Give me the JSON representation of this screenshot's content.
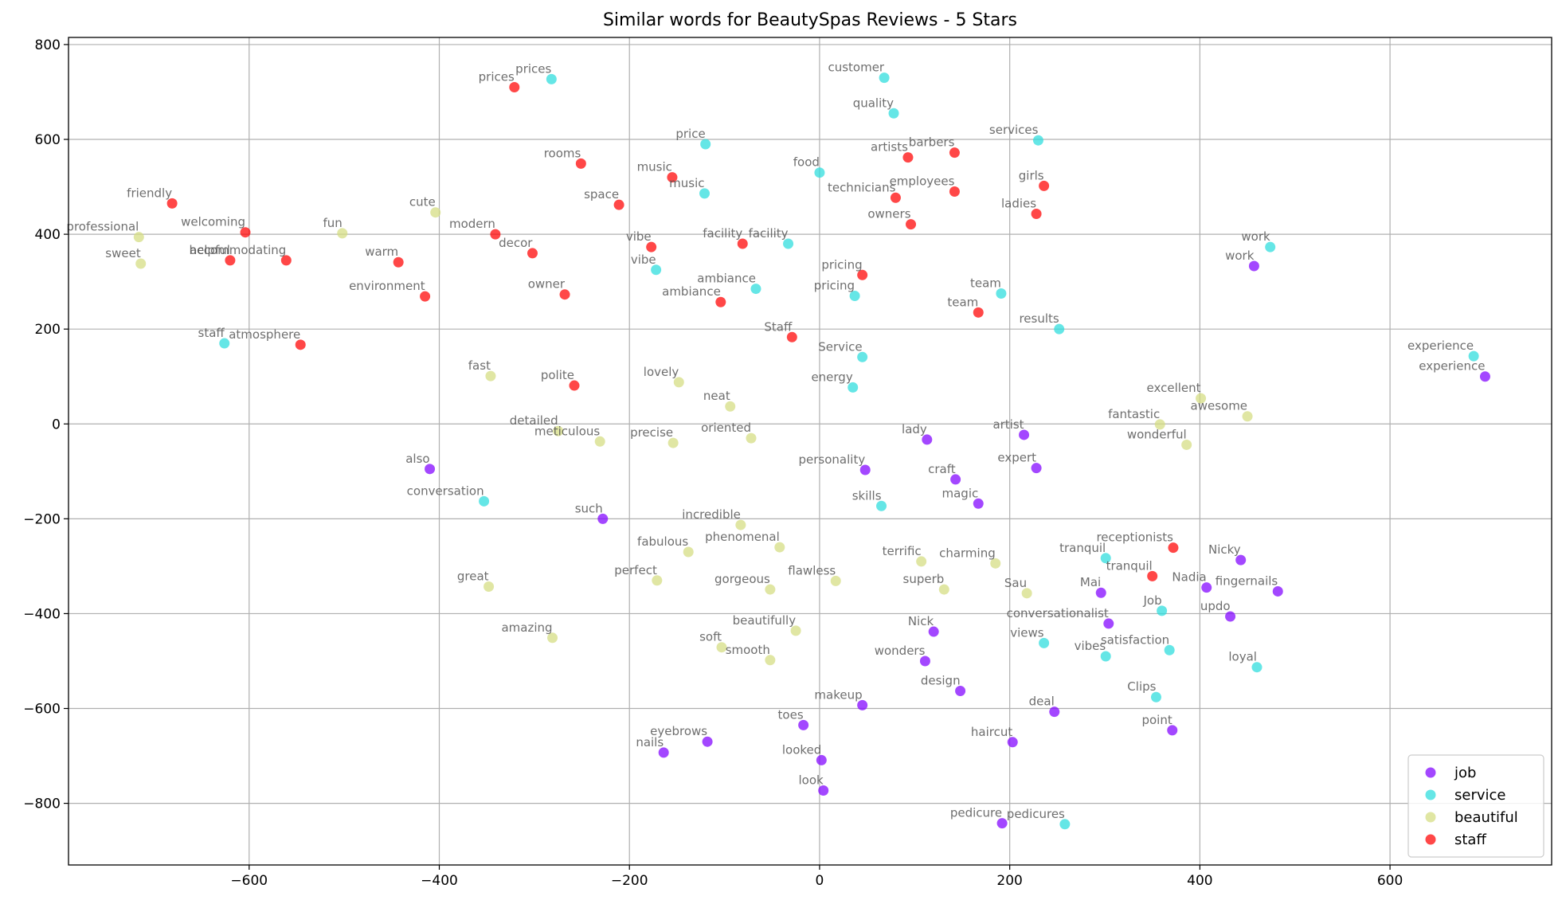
{
  "chart_data": {
    "type": "scatter",
    "title": "Similar words for BeautySpas Reviews - 5 Stars",
    "xlabel": "",
    "ylabel": "",
    "xlim": [
      -790,
      770
    ],
    "ylim": [
      -930,
      815
    ],
    "xticks": [
      -600,
      -400,
      -200,
      0,
      200,
      400,
      600
    ],
    "yticks": [
      -800,
      -600,
      -400,
      -200,
      0,
      200,
      400,
      600,
      800
    ],
    "grid": true,
    "legend_position": "bottom-right",
    "series": [
      {
        "name": "job",
        "color": "#8000ff",
        "points": [
          {
            "label": "work",
            "x": 457,
            "y": 333
          },
          {
            "label": "experience",
            "x": 700,
            "y": 100
          },
          {
            "label": "lady",
            "x": 113,
            "y": -33
          },
          {
            "label": "artist",
            "x": 215,
            "y": -23
          },
          {
            "label": "personality",
            "x": 48,
            "y": -97
          },
          {
            "label": "expert",
            "x": 228,
            "y": -93
          },
          {
            "label": "craft",
            "x": 143,
            "y": -117
          },
          {
            "label": "magic",
            "x": 167,
            "y": -168
          },
          {
            "label": "also",
            "x": -410,
            "y": -95
          },
          {
            "label": "such",
            "x": -228,
            "y": -200
          },
          {
            "label": "Nicky",
            "x": 443,
            "y": -287
          },
          {
            "label": "Mai",
            "x": 296,
            "y": -356
          },
          {
            "label": "Nadia",
            "x": 407,
            "y": -345
          },
          {
            "label": "fingernails",
            "x": 482,
            "y": -353
          },
          {
            "label": "updo",
            "x": 432,
            "y": -406
          },
          {
            "label": "conversationalist",
            "x": 304,
            "y": -421
          },
          {
            "label": "Nick",
            "x": 120,
            "y": -438
          },
          {
            "label": "wonders",
            "x": 111,
            "y": -500
          },
          {
            "label": "design",
            "x": 148,
            "y": -563
          },
          {
            "label": "makeup",
            "x": 45,
            "y": -593
          },
          {
            "label": "deal",
            "x": 247,
            "y": -607
          },
          {
            "label": "toes",
            "x": -17,
            "y": -635
          },
          {
            "label": "haircut",
            "x": 203,
            "y": -671
          },
          {
            "label": "point",
            "x": 371,
            "y": -646
          },
          {
            "label": "eyebrows",
            "x": -118,
            "y": -670
          },
          {
            "label": "nails",
            "x": -164,
            "y": -693
          },
          {
            "label": "looked",
            "x": 2,
            "y": -709
          },
          {
            "label": "look",
            "x": 4,
            "y": -773
          },
          {
            "label": "pedicure",
            "x": 192,
            "y": -842
          }
        ]
      },
      {
        "name": "service",
        "color": "#2adddd",
        "points": [
          {
            "label": "prices",
            "x": -282,
            "y": 727
          },
          {
            "label": "customer",
            "x": 68,
            "y": 730
          },
          {
            "label": "quality",
            "x": 78,
            "y": 655
          },
          {
            "label": "price",
            "x": -120,
            "y": 590
          },
          {
            "label": "services",
            "x": 230,
            "y": 598
          },
          {
            "label": "food",
            "x": 0,
            "y": 530
          },
          {
            "label": "music",
            "x": -121,
            "y": 486
          },
          {
            "label": "facility",
            "x": -33,
            "y": 380
          },
          {
            "label": "work",
            "x": 474,
            "y": 373
          },
          {
            "label": "vibe",
            "x": -172,
            "y": 325
          },
          {
            "label": "ambiance",
            "x": -67,
            "y": 285
          },
          {
            "label": "pricing",
            "x": 37,
            "y": 270
          },
          {
            "label": "team",
            "x": 191,
            "y": 275
          },
          {
            "label": "results",
            "x": 252,
            "y": 200
          },
          {
            "label": "staff",
            "x": -626,
            "y": 170
          },
          {
            "label": "Service",
            "x": 45,
            "y": 141
          },
          {
            "label": "experience",
            "x": 688,
            "y": 143
          },
          {
            "label": "energy",
            "x": 35,
            "y": 77
          },
          {
            "label": "skills",
            "x": 65,
            "y": -173
          },
          {
            "label": "conversation",
            "x": -353,
            "y": -163
          },
          {
            "label": "tranquil",
            "x": 301,
            "y": -283
          },
          {
            "label": "Job",
            "x": 360,
            "y": -394
          },
          {
            "label": "views",
            "x": 236,
            "y": -462
          },
          {
            "label": "satisfaction",
            "x": 368,
            "y": -477
          },
          {
            "label": "vibes",
            "x": 301,
            "y": -490
          },
          {
            "label": "loyal",
            "x": 460,
            "y": -513
          },
          {
            "label": "Clips",
            "x": 354,
            "y": -576
          },
          {
            "label": "pedicures",
            "x": 258,
            "y": -844
          }
        ]
      },
      {
        "name": "beautiful",
        "color": "#d4dd80",
        "points": [
          {
            "label": "professional",
            "x": -716,
            "y": 394
          },
          {
            "label": "sweet",
            "x": -714,
            "y": 338
          },
          {
            "label": "fun",
            "x": -502,
            "y": 402
          },
          {
            "label": "cute",
            "x": -404,
            "y": 446
          },
          {
            "label": "fast",
            "x": -346,
            "y": 101
          },
          {
            "label": "lovely",
            "x": -148,
            "y": 88
          },
          {
            "label": "neat",
            "x": -94,
            "y": 37
          },
          {
            "label": "excellent",
            "x": 401,
            "y": 54
          },
          {
            "label": "awesome",
            "x": 450,
            "y": 16
          },
          {
            "label": "fantastic",
            "x": 358,
            "y": -1
          },
          {
            "label": "wonderful",
            "x": 386,
            "y": -44
          },
          {
            "label": "detailed",
            "x": -275,
            "y": -15
          },
          {
            "label": "meticulous",
            "x": -231,
            "y": -37
          },
          {
            "label": "precise",
            "x": -154,
            "y": -40
          },
          {
            "label": "oriented",
            "x": -72,
            "y": -30
          },
          {
            "label": "incredible",
            "x": -83,
            "y": -213
          },
          {
            "label": "phenomenal",
            "x": -42,
            "y": -260
          },
          {
            "label": "fabulous",
            "x": -138,
            "y": -270
          },
          {
            "label": "terrific",
            "x": 107,
            "y": -290
          },
          {
            "label": "charming",
            "x": 185,
            "y": -294
          },
          {
            "label": "perfect",
            "x": -171,
            "y": -330
          },
          {
            "label": "flawless",
            "x": 17,
            "y": -331
          },
          {
            "label": "great",
            "x": -348,
            "y": -343
          },
          {
            "label": "gorgeous",
            "x": -52,
            "y": -349
          },
          {
            "label": "superb",
            "x": 131,
            "y": -349
          },
          {
            "label": "Sau",
            "x": 218,
            "y": -357
          },
          {
            "label": "beautifully",
            "x": -25,
            "y": -436
          },
          {
            "label": "amazing",
            "x": -281,
            "y": -451
          },
          {
            "label": "soft",
            "x": -103,
            "y": -471
          },
          {
            "label": "smooth",
            "x": -52,
            "y": -498
          }
        ]
      },
      {
        "name": "staff",
        "color": "#ff0000",
        "points": [
          {
            "label": "prices",
            "x": -321,
            "y": 710
          },
          {
            "label": "rooms",
            "x": -251,
            "y": 549
          },
          {
            "label": "music",
            "x": -155,
            "y": 520
          },
          {
            "label": "artists",
            "x": 93,
            "y": 562
          },
          {
            "label": "barbers",
            "x": 142,
            "y": 572
          },
          {
            "label": "technicians",
            "x": 80,
            "y": 477
          },
          {
            "label": "employees",
            "x": 142,
            "y": 490
          },
          {
            "label": "girls",
            "x": 236,
            "y": 502
          },
          {
            "label": "friendly",
            "x": -681,
            "y": 465
          },
          {
            "label": "space",
            "x": -211,
            "y": 462
          },
          {
            "label": "ladies",
            "x": 228,
            "y": 443
          },
          {
            "label": "owners",
            "x": 96,
            "y": 421
          },
          {
            "label": "welcoming",
            "x": -604,
            "y": 404
          },
          {
            "label": "modern",
            "x": -341,
            "y": 400
          },
          {
            "label": "facility",
            "x": -81,
            "y": 380
          },
          {
            "label": "vibe",
            "x": -177,
            "y": 373
          },
          {
            "label": "decor",
            "x": -302,
            "y": 360
          },
          {
            "label": "helpful",
            "x": -620,
            "y": 345
          },
          {
            "label": "accommodating",
            "x": -561,
            "y": 345
          },
          {
            "label": "warm",
            "x": -443,
            "y": 341
          },
          {
            "label": "pricing",
            "x": 45,
            "y": 314
          },
          {
            "label": "owner",
            "x": -268,
            "y": 273
          },
          {
            "label": "environment",
            "x": -415,
            "y": 269
          },
          {
            "label": "ambiance",
            "x": -104,
            "y": 257
          },
          {
            "label": "team",
            "x": 167,
            "y": 235
          },
          {
            "label": "Staff",
            "x": -29,
            "y": 183
          },
          {
            "label": "atmosphere",
            "x": -546,
            "y": 167
          },
          {
            "label": "polite",
            "x": -258,
            "y": 81
          },
          {
            "label": "receptionists",
            "x": 372,
            "y": -261
          },
          {
            "label": "tranquil",
            "x": 350,
            "y": -321
          }
        ]
      }
    ]
  }
}
